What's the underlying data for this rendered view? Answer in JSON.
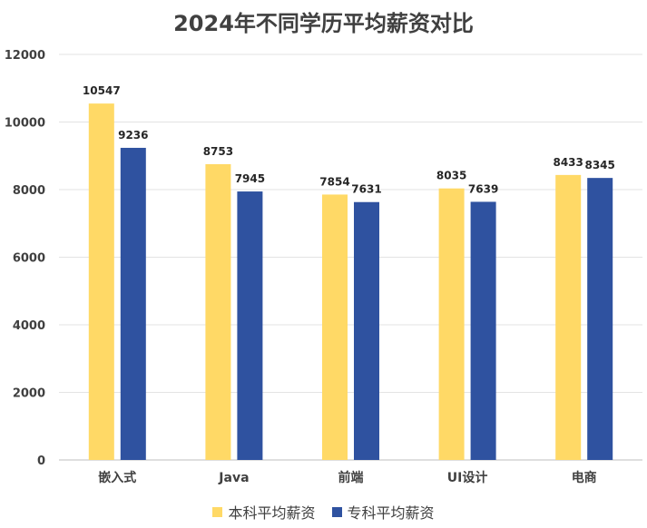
{
  "chart_data": {
    "type": "bar",
    "title": "2024年不同学历平均薪资对比",
    "categories": [
      "嵌入式",
      "Java",
      "前端",
      "UI设计",
      "电商"
    ],
    "series": [
      {
        "name": "本科平均薪资",
        "color": "#FFD966",
        "values": [
          10547,
          8753,
          7854,
          8035,
          8433
        ]
      },
      {
        "name": "专科平均薪资",
        "color": "#2F52A0",
        "values": [
          9236,
          7945,
          7631,
          7639,
          8345
        ]
      }
    ],
    "ylim": [
      0,
      12000
    ],
    "yticks": [
      0,
      2000,
      4000,
      6000,
      8000,
      10000,
      12000
    ],
    "grid": true,
    "legend_position": "bottom",
    "data_labels": true
  }
}
